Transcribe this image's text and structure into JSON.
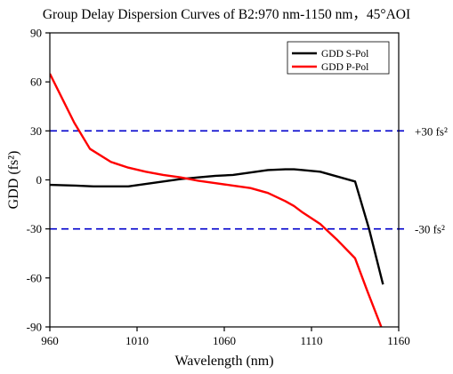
{
  "chart_data": {
    "type": "line",
    "title": "Group Delay Dispersion Curves of B2:970 nm-1150 nm，45°AOI",
    "xlabel": "Wavelength (nm)",
    "ylabel": "GDD (fs²)",
    "xlim": [
      960,
      1160
    ],
    "ylim": [
      -90,
      90
    ],
    "xticks": [
      960,
      1010,
      1060,
      1110,
      1160
    ],
    "yticks": [
      -90,
      -60,
      -30,
      0,
      30,
      60,
      90
    ],
    "grid": false,
    "legend_position": "top-right",
    "series": [
      {
        "name": "GDD S-Pol",
        "color": "#000000",
        "x": [
          960,
          975,
          985,
          995,
          1005,
          1015,
          1025,
          1035,
          1045,
          1055,
          1065,
          1075,
          1085,
          1095,
          1100,
          1105,
          1115,
          1125,
          1135,
          1143,
          1151
        ],
        "y": [
          -3,
          -3.5,
          -4,
          -4,
          -4,
          -2.5,
          -1,
          0.5,
          1.5,
          2.5,
          3,
          4.5,
          6,
          6.5,
          6.5,
          6,
          5,
          2,
          -1,
          -30,
          -64
        ]
      },
      {
        "name": "GDD P-Pol",
        "color": "#ff0000",
        "x": [
          960,
          967,
          974,
          983,
          995,
          1005,
          1015,
          1025,
          1035,
          1045,
          1055,
          1065,
          1075,
          1085,
          1095,
          1100,
          1105,
          1115,
          1125,
          1135,
          1142,
          1150
        ],
        "y": [
          65,
          50,
          35,
          19,
          11,
          7.5,
          5,
          3,
          1.5,
          -0.5,
          -2,
          -3.5,
          -5,
          -8,
          -13,
          -16,
          -20,
          -27,
          -37,
          -48,
          -68,
          -90
        ]
      }
    ],
    "reference_lines": [
      {
        "y": 30,
        "label": "+30 fs²",
        "color": "#0000cc",
        "style": "dashed"
      },
      {
        "y": -30,
        "label": "-30 fs²",
        "color": "#0000cc",
        "style": "dashed"
      }
    ]
  }
}
